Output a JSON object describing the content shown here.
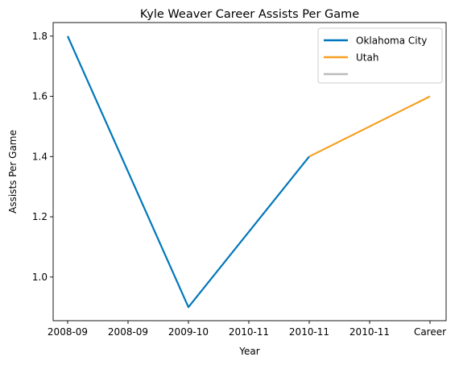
{
  "chart_data": {
    "type": "line",
    "title": "Kyle Weaver Career Assists Per Game",
    "xlabel": "Year",
    "ylabel": "Assists Per Game",
    "x_ticks": [
      "2008-09",
      "2008-09",
      "2009-10",
      "2010-11",
      "2010-11",
      "2010-11",
      "Career"
    ],
    "yticks": [
      1.0,
      1.2,
      1.4,
      1.6,
      1.8
    ],
    "ylim": [
      0.855,
      1.845
    ],
    "grid": false,
    "legend": "top-right",
    "series": [
      {
        "name": "Oklahoma City",
        "color": "#0077bb",
        "points": [
          [
            0,
            1.8
          ],
          [
            2,
            0.9
          ],
          [
            4,
            1.4
          ]
        ]
      },
      {
        "name": "Utah",
        "color": "#f5a020",
        "points": [
          [
            4,
            1.4
          ],
          [
            6,
            1.6
          ]
        ]
      },
      {
        "name": "",
        "color": "#bbbbbb",
        "points": []
      }
    ]
  }
}
